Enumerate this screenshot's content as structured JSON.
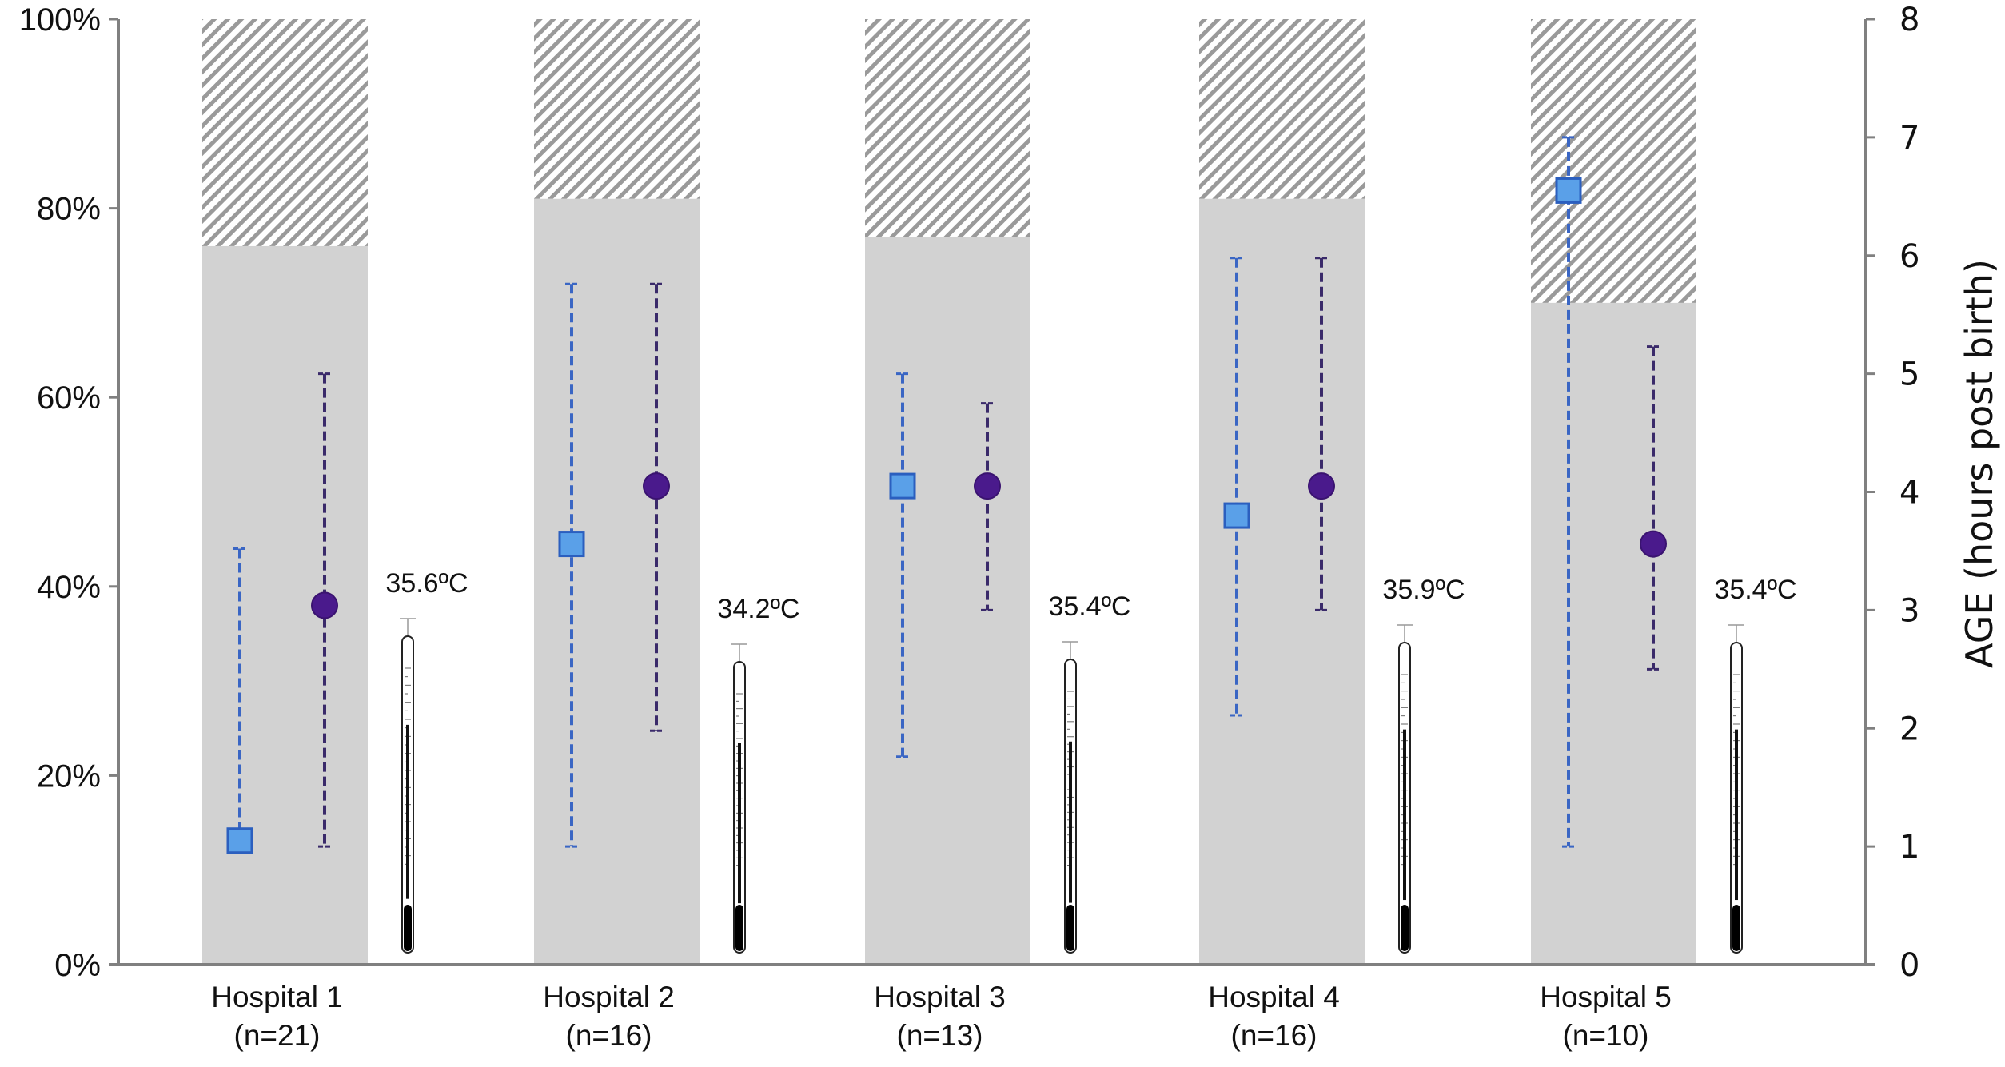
{
  "chart_data": {
    "type": "bar",
    "title": "",
    "categories": [
      "Hospital 1",
      "Hospital 2",
      "Hospital 3",
      "Hospital 4",
      "Hospital 5"
    ],
    "category_n": [
      "(n=21)",
      "(n=16)",
      "(n=13)",
      "(n=16)",
      "(n=10)"
    ],
    "left_axis": {
      "label": "",
      "ylim": [
        0,
        100
      ],
      "ticks": [
        "0%",
        "20%",
        "40%",
        "60%",
        "80%",
        "100%"
      ],
      "tick_values": [
        0,
        20,
        40,
        60,
        80,
        100
      ]
    },
    "right_axis": {
      "label": "AGE (hours post birth)",
      "ylim": [
        0,
        8
      ],
      "ticks": [
        "0",
        "1",
        "2",
        "3",
        "4",
        "5",
        "6",
        "7",
        "8"
      ],
      "tick_values": [
        0,
        1,
        2,
        3,
        4,
        5,
        6,
        7,
        8
      ]
    },
    "bars": {
      "name": "percent (solid grey), remainder to 100% hatched",
      "values": [
        76,
        81,
        77,
        81,
        70
      ]
    },
    "square_series": {
      "name": "square marker (age, hours)",
      "color": "#5aa0e8",
      "values": [
        1.05,
        3.56,
        4.05,
        3.8,
        6.55
      ],
      "low": [
        1.05,
        1.0,
        1.76,
        2.11,
        1.0
      ],
      "high": [
        3.52,
        5.76,
        5.0,
        5.98,
        7.0
      ]
    },
    "circle_series": {
      "name": "circle marker (age, hours)",
      "color": "#4a1a8c",
      "values": [
        3.04,
        4.05,
        4.05,
        4.05,
        3.56
      ],
      "low": [
        1.0,
        1.98,
        3.0,
        3.0,
        2.5
      ],
      "high": [
        5.0,
        5.76,
        4.75,
        5.98,
        5.23
      ]
    },
    "temperatures": [
      "35.6ºC",
      "34.2ºC",
      "35.4ºC",
      "35.9ºC",
      "35.4ºC"
    ],
    "grid": false,
    "legend": "none"
  }
}
